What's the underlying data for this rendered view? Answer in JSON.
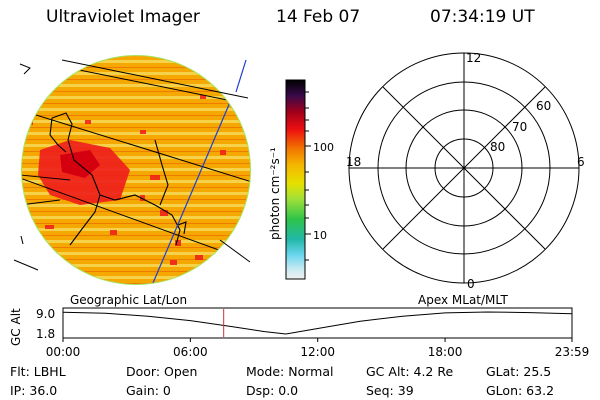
{
  "header": {
    "title": "Ultraviolet Imager",
    "date": "14 Feb 07",
    "time": "07:34:19 UT"
  },
  "colorbar": {
    "unit_label": "photon cm⁻²s⁻¹",
    "ticks": [
      "100",
      "10"
    ]
  },
  "polar": {
    "mlt_labels": [
      "12",
      "18",
      "6",
      "0"
    ],
    "lat_labels": [
      "60",
      "70",
      "80"
    ]
  },
  "timeline": {
    "left_title": "Geographic Lat/Lon",
    "right_title": "Apex MLat/MLT",
    "ylabel": "GC Alt",
    "y_ticks": [
      "9.0",
      "1.8"
    ],
    "x_ticks": [
      "00:00",
      "06:00",
      "12:00",
      "18:00",
      "23:59"
    ],
    "marker_time_hours": 7.57,
    "orbit_chart_data": {
      "type": "line",
      "x_hours": [
        0,
        2,
        4,
        6,
        8,
        9.5,
        10.5,
        12,
        14,
        16,
        18,
        20,
        22,
        23.98
      ],
      "y_alt_re": [
        8.9,
        8.6,
        7.6,
        6.2,
        4.2,
        2.6,
        1.8,
        3.6,
        6.0,
        7.6,
        8.7,
        9.0,
        8.8,
        8.4
      ],
      "ylim": [
        1.8,
        9.0
      ],
      "xlim": [
        0,
        23.98
      ]
    }
  },
  "footer": {
    "flt": "Flt: LBHL",
    "ip": "IP: 36.0",
    "door": "Door: Open",
    "gain": "Gain:  0",
    "mode": "Mode: Normal",
    "dsp": "Dsp:     0.0",
    "gcalt": "GC Alt: 4.2 Re",
    "seq": "Seq: 39",
    "glat": "GLat:  25.5",
    "glon": "GLon:  63.2"
  },
  "colors": {
    "disk_base": "#f2b000",
    "disk_hot": "#ee1c1c",
    "disk_rim": "#a6e35a",
    "marker": "#cc3333",
    "track_line": "#1f3fd0"
  }
}
